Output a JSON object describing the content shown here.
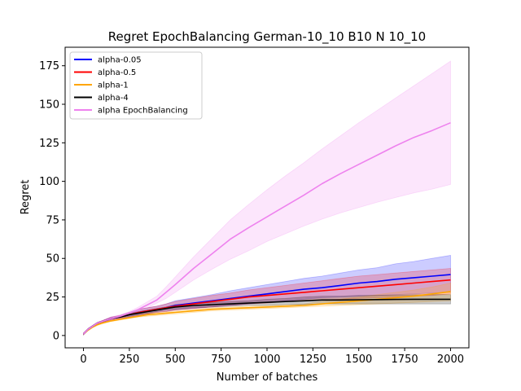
{
  "chart_data": {
    "type": "line",
    "title": "Regret EpochBalancing German-10_10 B10 N 10_10",
    "xlabel": "Number of batches",
    "ylabel": "Regret",
    "xlim": [
      -100,
      2100
    ],
    "ylim": [
      -8,
      187
    ],
    "xticks": [
      0,
      250,
      500,
      750,
      1000,
      1250,
      1500,
      1750,
      2000
    ],
    "yticks": [
      0,
      25,
      50,
      75,
      100,
      125,
      150,
      175
    ],
    "grid": false,
    "legend_position": "top-left",
    "x": [
      0,
      25,
      50,
      75,
      100,
      150,
      200,
      250,
      300,
      350,
      400,
      450,
      500,
      600,
      700,
      800,
      900,
      1000,
      1100,
      1200,
      1300,
      1400,
      1500,
      1600,
      1700,
      1800,
      1900,
      2000
    ],
    "series": [
      {
        "name": "alpha-0.05",
        "color": "#0000ff",
        "values": [
          1,
          4,
          6,
          8,
          9,
          11,
          12,
          13.5,
          15,
          16,
          17,
          18,
          19.5,
          21,
          22.5,
          24,
          25.5,
          27,
          28.5,
          30,
          31,
          32.5,
          34,
          35,
          36.5,
          37.5,
          38.5,
          39.5
        ],
        "lower": [
          0.5,
          3.5,
          5.5,
          7.5,
          8.5,
          10,
          11,
          12,
          13,
          14,
          15,
          15.5,
          16.5,
          17.5,
          18.5,
          19.5,
          20.5,
          21.5,
          22.5,
          23.5,
          24.5,
          25,
          25.5,
          26,
          26.5,
          27,
          27.5,
          28
        ],
        "upper": [
          1.5,
          4.5,
          6.5,
          8.5,
          9.5,
          12,
          13,
          15,
          17,
          18,
          19,
          20.5,
          22.5,
          24.5,
          26.5,
          29,
          31,
          33,
          35,
          37,
          38.5,
          40.5,
          42.5,
          44,
          46.5,
          48,
          50,
          52
        ]
      },
      {
        "name": "alpha-0.5",
        "color": "#ff0000",
        "values": [
          1,
          4,
          6,
          8,
          9,
          11,
          12,
          13.5,
          15,
          16,
          17,
          18,
          19,
          20.5,
          22,
          23.5,
          25,
          26,
          27,
          28,
          29,
          30,
          31,
          32,
          33,
          34,
          35,
          36
        ],
        "lower": [
          0.5,
          3.5,
          5.5,
          7.5,
          8.5,
          10,
          11,
          12,
          13,
          14,
          15,
          15.5,
          16.5,
          17.5,
          18.5,
          19.5,
          20.5,
          21,
          22,
          22.5,
          23,
          23.5,
          24,
          24.5,
          25,
          25.5,
          26,
          27
        ],
        "upper": [
          1.5,
          4.5,
          6.5,
          8.5,
          9.5,
          12,
          13,
          15,
          17,
          18,
          19,
          20.5,
          22,
          24,
          26,
          27.5,
          29.5,
          31,
          32.5,
          34,
          35.5,
          37,
          38.5,
          39.5,
          40.5,
          41.5,
          42.5,
          43.5
        ]
      },
      {
        "name": "alpha-1",
        "color": "#ffa500",
        "values": [
          1,
          3.5,
          5.5,
          7,
          8,
          9.5,
          10.5,
          11.5,
          12.5,
          13.5,
          14,
          14.5,
          15,
          16,
          17,
          17.5,
          18,
          18.5,
          19,
          19.5,
          20.5,
          21.5,
          22.5,
          23.5,
          24.5,
          25.5,
          27,
          28.5
        ],
        "lower": [
          0.5,
          3,
          5,
          6.5,
          7.5,
          9,
          10,
          11,
          12,
          12.5,
          13,
          13.5,
          14,
          15,
          16,
          16.5,
          17,
          17.5,
          18,
          18.5,
          19,
          19.5,
          20,
          20.5,
          21,
          21.5,
          22,
          22.5
        ],
        "upper": [
          1.5,
          4,
          6,
          7.5,
          8.5,
          10,
          11,
          12,
          13,
          14.5,
          15,
          15.5,
          16,
          17,
          18,
          18.5,
          19,
          19.5,
          20,
          20.5,
          22,
          23.5,
          25,
          26.5,
          28,
          29.5,
          31.5,
          34
        ]
      },
      {
        "name": "alpha-4",
        "color": "#000000",
        "values": [
          1,
          4,
          6,
          8,
          9,
          11,
          12,
          13.5,
          14.5,
          15.5,
          16.5,
          17.5,
          18.5,
          19.5,
          20,
          20.5,
          21,
          21.5,
          22,
          22.5,
          23,
          23,
          23.2,
          23.3,
          23.4,
          23.5,
          23.5,
          23.5
        ],
        "lower": [
          0.5,
          3.5,
          5.5,
          7.5,
          8.5,
          10.5,
          11.5,
          12.5,
          13.5,
          14.5,
          15.5,
          16.5,
          17,
          18,
          18.5,
          19,
          19.5,
          19.5,
          20,
          20,
          20.5,
          20.5,
          20.5,
          20.5,
          20.5,
          20.5,
          20.5,
          20.5
        ],
        "upper": [
          1.5,
          4.5,
          6.5,
          8.5,
          9.5,
          11.5,
          12.5,
          14.5,
          15.5,
          16.5,
          17.5,
          18.5,
          20,
          21,
          21.5,
          22,
          22.5,
          23.5,
          24,
          25,
          25.5,
          25.5,
          26,
          26,
          26.2,
          26.4,
          26.5,
          26.5
        ]
      },
      {
        "name": "alpha EpochBalancing",
        "color": "#ee82ee",
        "values": [
          1,
          4,
          6,
          8,
          9,
          11,
          12.5,
          14.5,
          17,
          20,
          23,
          28,
          33,
          43.5,
          53,
          62.5,
          70,
          77,
          84,
          91,
          98.5,
          105,
          111,
          117,
          123,
          128.5,
          133,
          138
        ],
        "lower": [
          0.5,
          3.5,
          5.5,
          7.5,
          8.5,
          10,
          11.5,
          13.5,
          15.5,
          18,
          21,
          24,
          28,
          36,
          43,
          49.5,
          55,
          61,
          66,
          71,
          75.5,
          79.5,
          83,
          86.5,
          89.5,
          92.5,
          95,
          98
        ],
        "upper": [
          1.5,
          4.5,
          6.5,
          8.5,
          9.5,
          12,
          13.5,
          15.5,
          18.5,
          22,
          25.5,
          31.5,
          38,
          51,
          63,
          75,
          85,
          94.5,
          103.5,
          112,
          121,
          129.5,
          138,
          146,
          154,
          162,
          170,
          178
        ]
      }
    ]
  }
}
